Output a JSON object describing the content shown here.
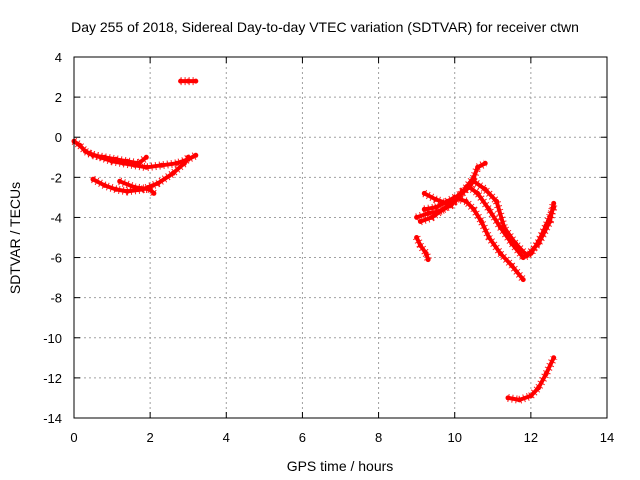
{
  "chart_data": {
    "type": "scatter",
    "title": "Day 255 of 2018, Sidereal Day-to-day VTEC variation (SDTVAR) for receiver ctwn",
    "xlabel": "GPS time / hours",
    "ylabel": "SDTVAR / TECUs",
    "xlim": [
      0,
      14
    ],
    "ylim": [
      -14,
      4
    ],
    "xticks": [
      0,
      2,
      4,
      6,
      8,
      10,
      12,
      14
    ],
    "yticks": [
      -14,
      -12,
      -10,
      -8,
      -6,
      -4,
      -2,
      0,
      2,
      4
    ],
    "xtick_labels": [
      "0",
      "2",
      "4",
      "6",
      "8",
      "10",
      "12",
      "14"
    ],
    "ytick_labels": [
      "-14",
      "-12",
      "-10",
      "-8",
      "-6",
      "-4",
      "-2",
      "0",
      "2",
      "4"
    ],
    "grid": true,
    "color": "#ff0000",
    "series": [
      {
        "points": [
          [
            0.0,
            -0.2
          ],
          [
            0.15,
            -0.4
          ],
          [
            0.3,
            -0.7
          ],
          [
            0.5,
            -0.9
          ],
          [
            0.8,
            -1.0
          ],
          [
            1.1,
            -1.1
          ],
          [
            1.4,
            -1.2
          ],
          [
            1.7,
            -1.3
          ],
          [
            1.9,
            -1.0
          ]
        ]
      },
      {
        "points": [
          [
            0.4,
            -0.8
          ],
          [
            0.7,
            -1.0
          ],
          [
            1.0,
            -1.2
          ],
          [
            1.3,
            -1.3
          ],
          [
            1.6,
            -1.4
          ],
          [
            1.9,
            -1.5
          ],
          [
            2.3,
            -1.4
          ],
          [
            2.7,
            -1.3
          ],
          [
            3.0,
            -1.1
          ],
          [
            3.2,
            -0.9
          ]
        ]
      },
      {
        "points": [
          [
            1.2,
            -2.2
          ],
          [
            1.6,
            -2.5
          ],
          [
            2.0,
            -2.6
          ],
          [
            2.1,
            -2.8
          ]
        ]
      },
      {
        "points": [
          [
            0.5,
            -2.1
          ],
          [
            0.8,
            -2.4
          ],
          [
            1.1,
            -2.6
          ],
          [
            1.4,
            -2.7
          ],
          [
            1.8,
            -2.6
          ],
          [
            2.2,
            -2.3
          ],
          [
            2.6,
            -1.8
          ],
          [
            2.9,
            -1.3
          ],
          [
            3.0,
            -1.0
          ]
        ]
      },
      {
        "points": [
          [
            2.8,
            2.8
          ],
          [
            3.0,
            2.8
          ],
          [
            3.2,
            2.8
          ]
        ]
      },
      {
        "points": [
          [
            9.0,
            -4.0
          ],
          [
            9.3,
            -3.8
          ],
          [
            9.6,
            -3.7
          ],
          [
            9.9,
            -3.4
          ],
          [
            10.1,
            -3.0
          ],
          [
            10.3,
            -2.5
          ],
          [
            10.5,
            -2.0
          ],
          [
            10.6,
            -1.5
          ],
          [
            10.8,
            -1.3
          ]
        ]
      },
      {
        "points": [
          [
            9.1,
            -4.2
          ],
          [
            9.4,
            -4.0
          ],
          [
            9.7,
            -3.6
          ],
          [
            10.0,
            -3.1
          ],
          [
            10.2,
            -2.7
          ],
          [
            10.4,
            -2.5
          ],
          [
            10.6,
            -2.8
          ],
          [
            10.9,
            -3.6
          ],
          [
            11.2,
            -4.5
          ],
          [
            11.5,
            -5.3
          ],
          [
            11.8,
            -6.0
          ],
          [
            12.0,
            -5.8
          ],
          [
            12.2,
            -5.2
          ],
          [
            12.4,
            -4.4
          ],
          [
            12.6,
            -3.5
          ]
        ]
      },
      {
        "points": [
          [
            9.2,
            -2.8
          ],
          [
            9.5,
            -3.1
          ],
          [
            9.8,
            -3.3
          ],
          [
            10.0,
            -3.2
          ],
          [
            10.3,
            -2.6
          ],
          [
            10.5,
            -2.2
          ],
          [
            10.8,
            -2.6
          ],
          [
            11.1,
            -3.2
          ],
          [
            11.3,
            -4.5
          ],
          [
            11.6,
            -5.3
          ],
          [
            11.9,
            -5.9
          ],
          [
            12.2,
            -5.3
          ],
          [
            12.5,
            -4.2
          ],
          [
            12.6,
            -3.3
          ]
        ]
      },
      {
        "points": [
          [
            9.2,
            -3.6
          ],
          [
            9.5,
            -3.5
          ],
          [
            9.8,
            -3.2
          ],
          [
            10.0,
            -3.0
          ],
          [
            10.3,
            -3.2
          ],
          [
            10.5,
            -3.6
          ],
          [
            10.7,
            -4.2
          ],
          [
            10.9,
            -5.0
          ],
          [
            11.2,
            -5.8
          ],
          [
            11.5,
            -6.4
          ],
          [
            11.8,
            -7.1
          ]
        ]
      },
      {
        "points": [
          [
            9.0,
            -5.0
          ],
          [
            9.1,
            -5.4
          ],
          [
            9.25,
            -5.8
          ],
          [
            9.3,
            -6.1
          ]
        ]
      },
      {
        "points": [
          [
            11.4,
            -13.0
          ],
          [
            11.7,
            -13.1
          ],
          [
            12.0,
            -12.9
          ],
          [
            12.2,
            -12.5
          ],
          [
            12.4,
            -11.8
          ],
          [
            12.6,
            -11.0
          ]
        ]
      }
    ]
  }
}
